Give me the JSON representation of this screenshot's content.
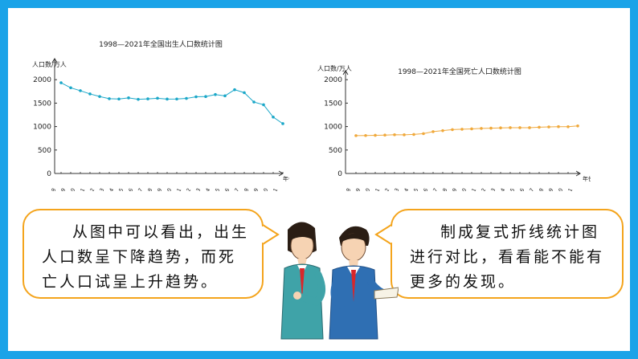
{
  "charts": [
    {
      "title": "1998—2021年全国出生人口数统计图",
      "ylabel": "人口数/万人",
      "xlabel": "年份",
      "series_color": "#1aa7c8"
    },
    {
      "title": "1998—2021年全国死亡人口数统计图",
      "ylabel": "人口数/万人",
      "xlabel": "年份",
      "series_color": "#f0a93c"
    }
  ],
  "chart_data": [
    {
      "type": "line",
      "title": "1998—2021年全国出生人口数统计图",
      "ylabel": "人口数/万人",
      "xlabel": "年份",
      "ylim": [
        0,
        2500
      ],
      "yticks": [
        0,
        500,
        1000,
        1500,
        2000
      ],
      "categories": [
        "1998",
        "1999",
        "2000",
        "2001",
        "2002",
        "2003",
        "2004",
        "2005",
        "2006",
        "2007",
        "2008",
        "2009",
        "2010",
        "2011",
        "2012",
        "2013",
        "2014",
        "2015",
        "2016",
        "2017",
        "2018",
        "2019",
        "2020",
        "2021"
      ],
      "values": [
        1934,
        1827,
        1765,
        1696,
        1641,
        1594,
        1588,
        1612,
        1581,
        1591,
        1604,
        1587,
        1588,
        1600,
        1635,
        1640,
        1683,
        1655,
        1786,
        1723,
        1523,
        1465,
        1202,
        1062
      ],
      "grid": false,
      "legend": "none"
    },
    {
      "type": "line",
      "title": "1998—2021年全国死亡人口数统计图",
      "ylabel": "人口数/万人",
      "xlabel": "年份",
      "ylim": [
        0,
        2500
      ],
      "yticks": [
        0,
        500,
        1000,
        1500,
        2000
      ],
      "categories": [
        "1998",
        "1999",
        "2000",
        "2001",
        "2002",
        "2003",
        "2004",
        "2005",
        "2006",
        "2007",
        "2008",
        "2009",
        "2010",
        "2011",
        "2012",
        "2013",
        "2014",
        "2015",
        "2016",
        "2017",
        "2018",
        "2019",
        "2020",
        "2021"
      ],
      "values": [
        807,
        809,
        814,
        818,
        826,
        825,
        832,
        849,
        892,
        913,
        935,
        943,
        951,
        960,
        966,
        972,
        977,
        977,
        977,
        986,
        993,
        998,
        997,
        1014
      ],
      "grid": false,
      "legend": "none"
    }
  ],
  "bubbles": {
    "left": "从图中可以看出，出生人口数呈下降趋势，而死亡人口试呈上升趋势。",
    "right": "制成复式折线统计图进行对比，看看能不能有更多的发现。"
  },
  "colors": {
    "frame": "#1aa3e8",
    "bubble_border": "#f4a41c",
    "birth_line": "#1aa7c8",
    "death_line": "#f0a93c"
  }
}
